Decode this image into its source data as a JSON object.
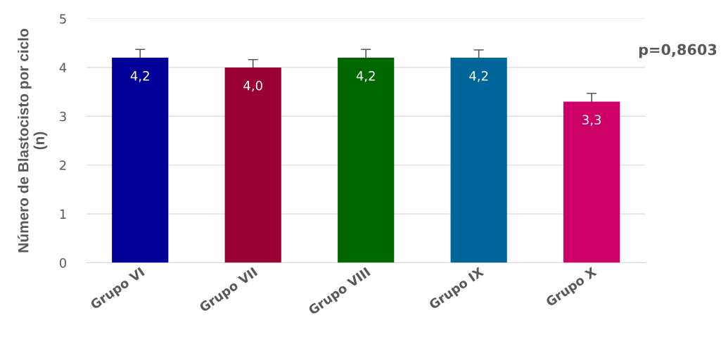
{
  "chart_data": {
    "type": "bar",
    "ylabel": "Número de Blastocisto por ciclo\n(n)",
    "categories": [
      "Grupo VI",
      "Grupo VII",
      "Grupo VIII",
      "Grupo IX",
      "Grupo X"
    ],
    "values": [
      4.2,
      4.0,
      4.2,
      4.2,
      3.3
    ],
    "colors": [
      "#000099",
      "#990033",
      "#006600",
      "#006699",
      "#cc0066"
    ],
    "errors": [
      0.17,
      0.16,
      0.17,
      0.16,
      0.17
    ],
    "value_labels": [
      "4,2",
      "4,0",
      "4,2",
      "4,2",
      "3,3"
    ],
    "ylim": [
      0,
      5
    ],
    "yticks": [
      0,
      1,
      2,
      3,
      4,
      5
    ],
    "grid": "y",
    "annotations": [
      "p=0,8603"
    ]
  }
}
